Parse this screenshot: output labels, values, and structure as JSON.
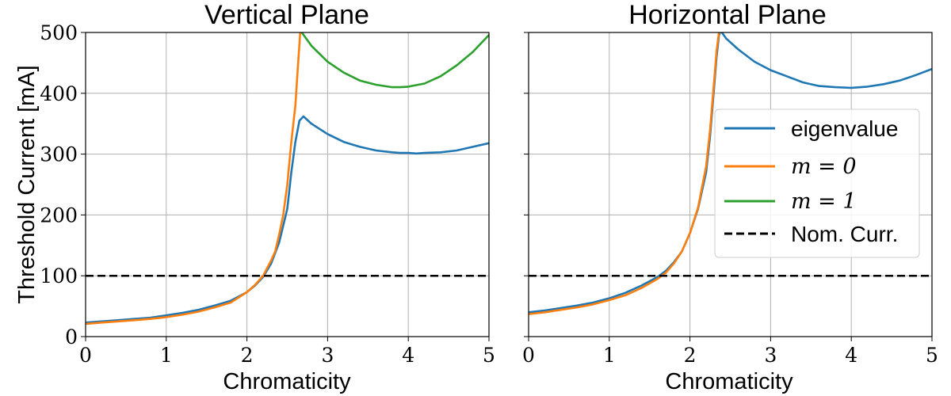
{
  "chart_data": [
    {
      "type": "line",
      "title": "Vertical Plane",
      "xlabel": "Chromaticity",
      "ylabel": "Threshold Current [mA]",
      "xlim": [
        0,
        5
      ],
      "ylim": [
        0,
        500
      ],
      "xticks": [
        "0",
        "1",
        "2",
        "3",
        "4",
        "5"
      ],
      "yticks": [
        "0",
        "100",
        "200",
        "300",
        "400",
        "500"
      ],
      "grid": true,
      "colors": {
        "eigenvalue": "#1f77b4",
        "m0": "#ff7f0e",
        "m1": "#2ca02c",
        "nominal": "#000000"
      },
      "series": [
        {
          "name": "eigenvalue",
          "x": [
            0,
            0.2,
            0.4,
            0.6,
            0.8,
            1.0,
            1.2,
            1.4,
            1.6,
            1.8,
            2.0,
            2.1,
            2.2,
            2.3,
            2.4,
            2.5,
            2.55,
            2.6,
            2.65,
            2.7,
            2.8,
            3.0,
            3.2,
            3.4,
            3.6,
            3.8,
            3.9,
            4.0,
            4.1,
            4.2,
            4.4,
            4.6,
            4.8,
            5.0
          ],
          "y": [
            23,
            25,
            27,
            29,
            31,
            35,
            39,
            44,
            51,
            59,
            73,
            84,
            98,
            120,
            155,
            210,
            270,
            320,
            355,
            362,
            350,
            333,
            320,
            312,
            306,
            303,
            302,
            302,
            301,
            302,
            303,
            306,
            312,
            318
          ]
        },
        {
          "name": "m = 0",
          "x": [
            0,
            0.2,
            0.4,
            0.6,
            0.8,
            1.0,
            1.2,
            1.4,
            1.6,
            1.8,
            2.0,
            2.1,
            2.2,
            2.3,
            2.35,
            2.4,
            2.45,
            2.5,
            2.55,
            2.6,
            2.63,
            2.65,
            2.66,
            2.68
          ],
          "y": [
            21,
            23,
            25,
            27,
            29,
            32,
            36,
            41,
            48,
            56,
            73,
            85,
            100,
            125,
            140,
            168,
            200,
            250,
            320,
            380,
            440,
            480,
            500,
            510
          ]
        },
        {
          "name": "m = 1",
          "x": [
            2.68,
            2.8,
            3.0,
            3.2,
            3.4,
            3.6,
            3.8,
            3.9,
            4.0,
            4.2,
            4.4,
            4.6,
            4.8,
            5.0
          ],
          "y": [
            500,
            478,
            452,
            434,
            421,
            414,
            410,
            410,
            411,
            416,
            428,
            446,
            468,
            496
          ]
        },
        {
          "name": "Nom. Curr.",
          "x": [
            0,
            5
          ],
          "y": [
            100,
            100
          ]
        }
      ]
    },
    {
      "type": "line",
      "title": "Horizontal Plane",
      "xlabel": "Chromaticity",
      "ylabel": "",
      "xlim": [
        0,
        5
      ],
      "ylim": [
        0,
        500
      ],
      "xticks": [
        "0",
        "1",
        "2",
        "3",
        "4",
        "5"
      ],
      "yticks": [
        "0",
        "100",
        "200",
        "300",
        "400",
        "500"
      ],
      "grid": true,
      "legend_position": "center-right",
      "legend": [
        {
          "label": "eigenvalue",
          "style": "text"
        },
        {
          "label": "m = 0",
          "style": "math"
        },
        {
          "label": "m = 1",
          "style": "math"
        },
        {
          "label": "Nom. Curr.",
          "style": "text"
        }
      ],
      "colors": {
        "eigenvalue": "#1f77b4",
        "m0": "#ff7f0e",
        "m1": "#2ca02c",
        "nominal": "#000000"
      },
      "series": [
        {
          "name": "eigenvalue",
          "x": [
            0,
            0.2,
            0.4,
            0.6,
            0.8,
            1.0,
            1.2,
            1.4,
            1.6,
            1.7,
            1.8,
            1.9,
            2.0,
            2.1,
            2.2,
            2.25,
            2.3,
            2.33,
            2.36,
            2.38,
            2.45,
            2.6,
            2.8,
            3.0,
            3.2,
            3.4,
            3.6,
            3.8,
            4.0,
            4.2,
            4.4,
            4.6,
            4.8,
            5.0
          ],
          "y": [
            40,
            43,
            47,
            51,
            56,
            63,
            72,
            84,
            98,
            108,
            122,
            140,
            170,
            210,
            270,
            330,
            410,
            460,
            495,
            503,
            490,
            472,
            452,
            438,
            428,
            418,
            412,
            410,
            409,
            411,
            415,
            421,
            430,
            440
          ]
        },
        {
          "name": "m = 0",
          "x": [
            0,
            0.2,
            0.4,
            0.6,
            0.8,
            1.0,
            1.2,
            1.4,
            1.6,
            1.7,
            1.8,
            1.9,
            2.0,
            2.1,
            2.2,
            2.25,
            2.3,
            2.33,
            2.36,
            2.38
          ],
          "y": [
            37,
            40,
            44,
            48,
            53,
            60,
            68,
            80,
            95,
            105,
            120,
            140,
            170,
            212,
            280,
            340,
            420,
            470,
            500,
            510
          ]
        },
        {
          "name": "Nom. Curr.",
          "x": [
            0,
            5
          ],
          "y": [
            100,
            100
          ]
        }
      ]
    }
  ]
}
